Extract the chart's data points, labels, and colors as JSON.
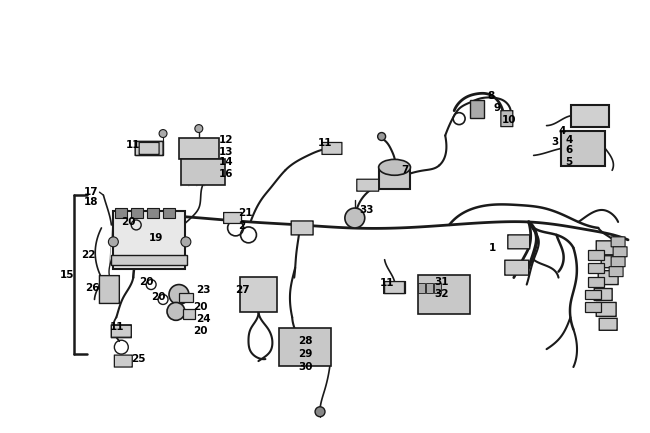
{
  "background_color": "#ffffff",
  "figsize": [
    6.5,
    4.33
  ],
  "dpi": 100,
  "line_color": "#1a1a1a",
  "label_fontsize": 7.5,
  "label_color": "#000000",
  "label_fontweight": "bold"
}
